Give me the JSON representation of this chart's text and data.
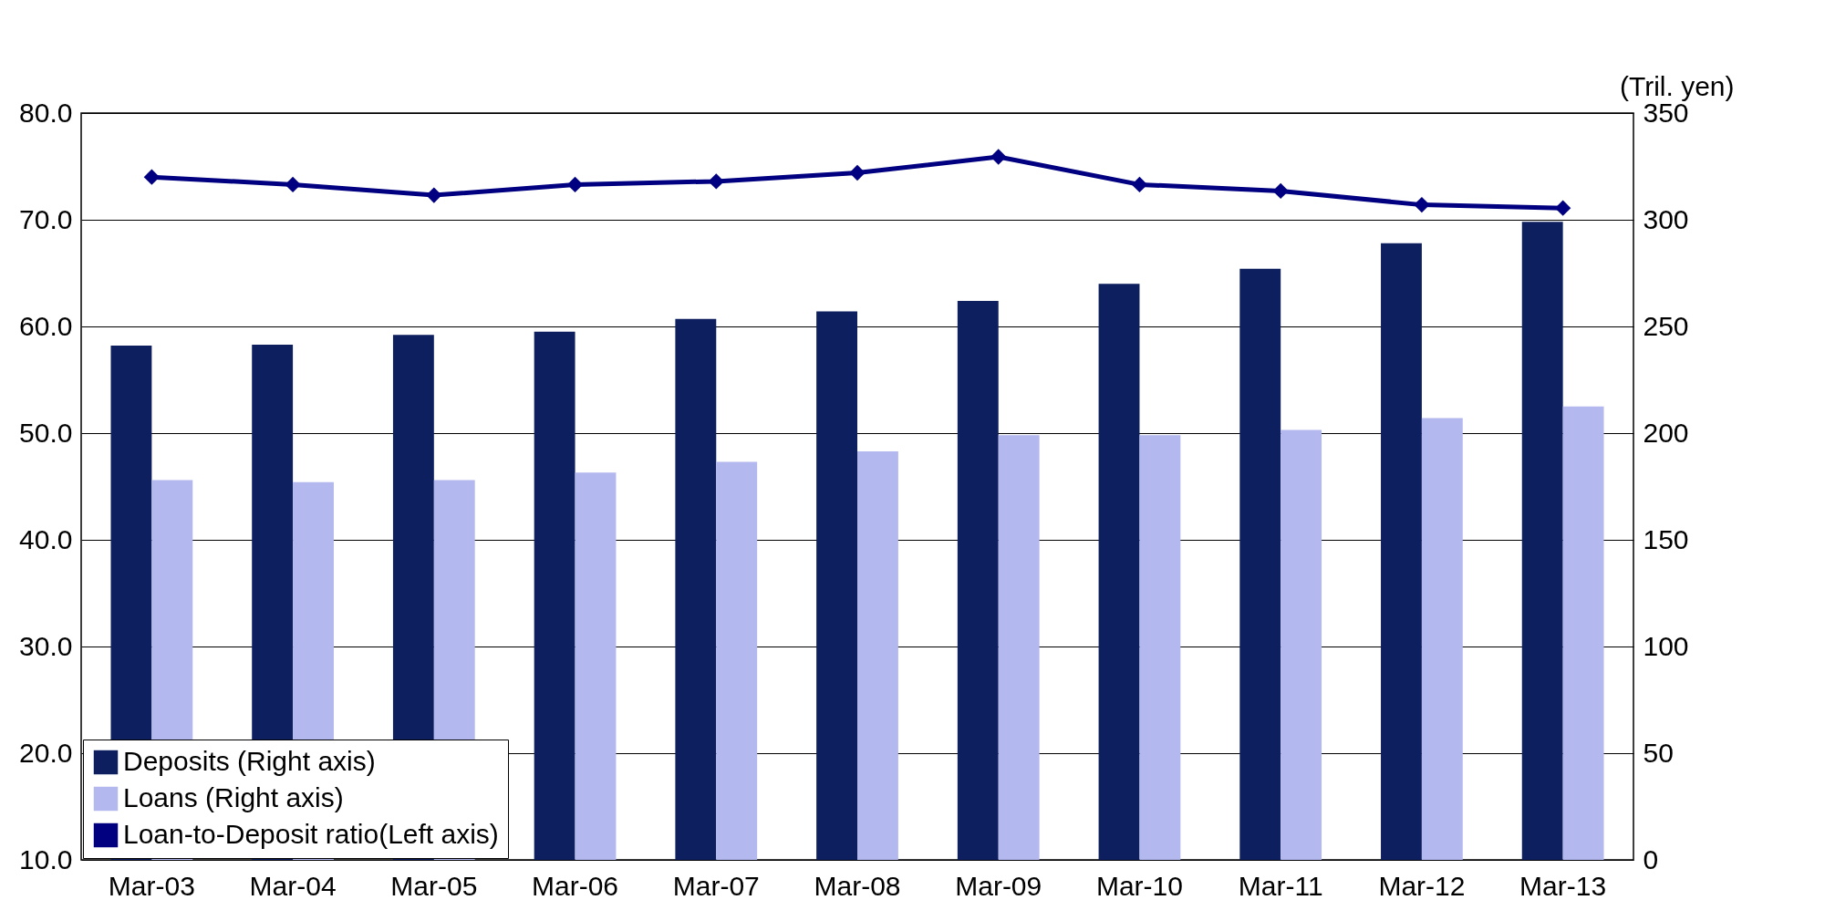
{
  "chart_data": {
    "type": "bar",
    "categories": [
      "Mar-03",
      "Mar-04",
      "Mar-05",
      "Mar-06",
      "Mar-07",
      "Mar-08",
      "Mar-09",
      "Mar-10",
      "Mar-11",
      "Mar-12",
      "Mar-13"
    ],
    "series": [
      {
        "name": "Deposits (Right axis)",
        "color": "#0d1f5e",
        "axis": "y2",
        "values": [
          241,
          241.5,
          246,
          247.5,
          253.5,
          257,
          262,
          270,
          277,
          289,
          299
        ]
      },
      {
        "name": "Loans  (Right axis)",
        "color": "#b3b8ee",
        "axis": "y2",
        "values": [
          178,
          177,
          178,
          181.5,
          186.5,
          191.5,
          199,
          199,
          201.5,
          207,
          212.5
        ]
      },
      {
        "name": "Loan-to-Deposit ratio(Left axis)",
        "type": "line",
        "color": "#000080",
        "axis": "y",
        "marker": "diamond",
        "line_style": "solid",
        "values": [
          74.0,
          73.3,
          72.3,
          73.3,
          73.6,
          74.4,
          75.9,
          73.3,
          72.7,
          71.4,
          71.1
        ]
      }
    ],
    "y2label": "(Tril. yen)",
    "ylim": [
      10,
      80
    ],
    "yticks": [
      {
        "value": 10,
        "label": "10.0"
      },
      {
        "value": 20,
        "label": "20.0"
      },
      {
        "value": 30,
        "label": "30.0"
      },
      {
        "value": 40,
        "label": "40.0"
      },
      {
        "value": 50,
        "label": "50.0"
      },
      {
        "value": 60,
        "label": "60.0"
      },
      {
        "value": 70,
        "label": "70.0"
      },
      {
        "value": 80,
        "label": "80.0"
      }
    ],
    "y2lim": [
      0,
      350
    ],
    "y2ticks": [
      0,
      50,
      100,
      150,
      200,
      250,
      300,
      350
    ],
    "grid": "y",
    "legend": "bottom left"
  }
}
